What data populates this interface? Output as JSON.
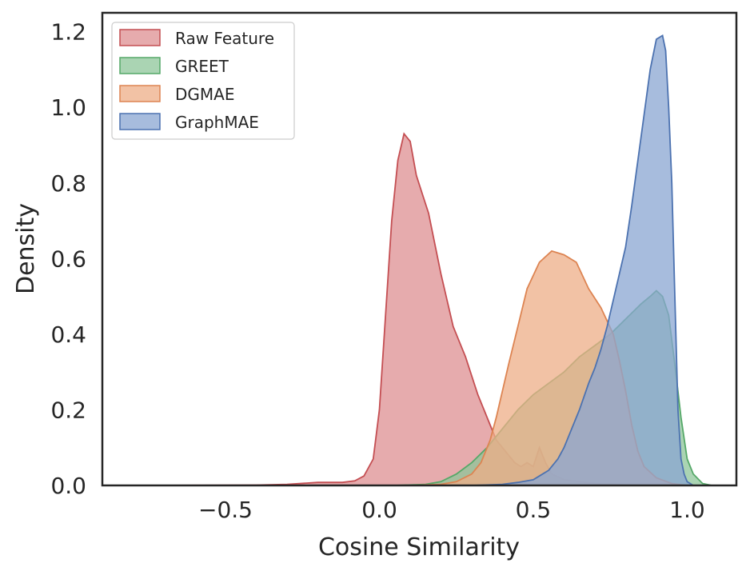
{
  "chart_data": {
    "type": "area",
    "title": "",
    "xlabel": "Cosine Similarity",
    "ylabel": "Density",
    "xlim": [
      -0.9,
      1.16
    ],
    "ylim": [
      0,
      1.25
    ],
    "xticks": [
      -0.5,
      0.0,
      0.5,
      1.0
    ],
    "xtick_labels": [
      "−0.5",
      "0.0",
      "0.5",
      "1.0"
    ],
    "yticks": [
      0.0,
      0.2,
      0.4,
      0.6,
      0.8,
      1.0,
      1.2
    ],
    "ytick_labels": [
      "0.0",
      "0.2",
      "0.4",
      "0.6",
      "0.8",
      "1.0",
      "1.2"
    ],
    "grid": false,
    "legend_position": "top-left",
    "series": [
      {
        "name": "Raw Feature",
        "color": "#c44e52",
        "fill": "#dd8f92",
        "points": [
          [
            -0.8,
            0.0
          ],
          [
            -0.4,
            0.001
          ],
          [
            -0.3,
            0.003
          ],
          [
            -0.2,
            0.008
          ],
          [
            -0.12,
            0.008
          ],
          [
            -0.08,
            0.012
          ],
          [
            -0.05,
            0.025
          ],
          [
            -0.02,
            0.07
          ],
          [
            0.0,
            0.2
          ],
          [
            0.02,
            0.45
          ],
          [
            0.04,
            0.7
          ],
          [
            0.06,
            0.86
          ],
          [
            0.08,
            0.93
          ],
          [
            0.1,
            0.91
          ],
          [
            0.12,
            0.82
          ],
          [
            0.14,
            0.77
          ],
          [
            0.16,
            0.72
          ],
          [
            0.18,
            0.64
          ],
          [
            0.2,
            0.56
          ],
          [
            0.22,
            0.49
          ],
          [
            0.24,
            0.42
          ],
          [
            0.26,
            0.38
          ],
          [
            0.28,
            0.34
          ],
          [
            0.3,
            0.29
          ],
          [
            0.32,
            0.24
          ],
          [
            0.34,
            0.2
          ],
          [
            0.36,
            0.16
          ],
          [
            0.38,
            0.12
          ],
          [
            0.4,
            0.1
          ],
          [
            0.42,
            0.08
          ],
          [
            0.44,
            0.06
          ],
          [
            0.46,
            0.05
          ],
          [
            0.48,
            0.06
          ],
          [
            0.5,
            0.05
          ],
          [
            0.52,
            0.1
          ],
          [
            0.54,
            0.06
          ],
          [
            0.56,
            0.03
          ],
          [
            0.6,
            0.015
          ],
          [
            0.65,
            0.01
          ],
          [
            0.7,
            0.005
          ],
          [
            0.8,
            0.002
          ],
          [
            1.0,
            0.0
          ]
        ]
      },
      {
        "name": "GREET",
        "color": "#55a868",
        "fill": "#8ec69a",
        "points": [
          [
            0.05,
            0.0
          ],
          [
            0.15,
            0.003
          ],
          [
            0.2,
            0.01
          ],
          [
            0.25,
            0.03
          ],
          [
            0.3,
            0.06
          ],
          [
            0.35,
            0.1
          ],
          [
            0.4,
            0.15
          ],
          [
            0.45,
            0.2
          ],
          [
            0.5,
            0.24
          ],
          [
            0.55,
            0.27
          ],
          [
            0.6,
            0.3
          ],
          [
            0.65,
            0.34
          ],
          [
            0.7,
            0.37
          ],
          [
            0.75,
            0.4
          ],
          [
            0.8,
            0.44
          ],
          [
            0.85,
            0.48
          ],
          [
            0.88,
            0.5
          ],
          [
            0.9,
            0.515
          ],
          [
            0.92,
            0.5
          ],
          [
            0.94,
            0.45
          ],
          [
            0.96,
            0.32
          ],
          [
            0.98,
            0.18
          ],
          [
            1.0,
            0.07
          ],
          [
            1.02,
            0.03
          ],
          [
            1.05,
            0.005
          ],
          [
            1.08,
            0.0
          ]
        ]
      },
      {
        "name": "DGMAE",
        "color": "#dd8452",
        "fill": "#eeae87",
        "points": [
          [
            0.1,
            0.0
          ],
          [
            0.2,
            0.003
          ],
          [
            0.25,
            0.01
          ],
          [
            0.3,
            0.03
          ],
          [
            0.33,
            0.06
          ],
          [
            0.36,
            0.12
          ],
          [
            0.38,
            0.18
          ],
          [
            0.4,
            0.25
          ],
          [
            0.42,
            0.32
          ],
          [
            0.45,
            0.42
          ],
          [
            0.48,
            0.52
          ],
          [
            0.52,
            0.59
          ],
          [
            0.56,
            0.62
          ],
          [
            0.6,
            0.61
          ],
          [
            0.64,
            0.59
          ],
          [
            0.68,
            0.52
          ],
          [
            0.72,
            0.47
          ],
          [
            0.76,
            0.4
          ],
          [
            0.78,
            0.33
          ],
          [
            0.8,
            0.25
          ],
          [
            0.82,
            0.16
          ],
          [
            0.84,
            0.09
          ],
          [
            0.86,
            0.05
          ],
          [
            0.9,
            0.02
          ],
          [
            0.95,
            0.005
          ],
          [
            1.0,
            0.0
          ]
        ]
      },
      {
        "name": "GraphMAE",
        "color": "#4c72b0",
        "fill": "#8aa6d1",
        "points": [
          [
            0.3,
            0.0
          ],
          [
            0.4,
            0.003
          ],
          [
            0.45,
            0.008
          ],
          [
            0.5,
            0.015
          ],
          [
            0.52,
            0.025
          ],
          [
            0.55,
            0.04
          ],
          [
            0.58,
            0.07
          ],
          [
            0.6,
            0.1
          ],
          [
            0.62,
            0.14
          ],
          [
            0.65,
            0.2
          ],
          [
            0.68,
            0.27
          ],
          [
            0.7,
            0.31
          ],
          [
            0.72,
            0.36
          ],
          [
            0.74,
            0.42
          ],
          [
            0.76,
            0.49
          ],
          [
            0.78,
            0.56
          ],
          [
            0.8,
            0.63
          ],
          [
            0.82,
            0.74
          ],
          [
            0.84,
            0.86
          ],
          [
            0.86,
            0.98
          ],
          [
            0.88,
            1.1
          ],
          [
            0.9,
            1.18
          ],
          [
            0.92,
            1.19
          ],
          [
            0.93,
            1.15
          ],
          [
            0.94,
            1.0
          ],
          [
            0.95,
            0.8
          ],
          [
            0.96,
            0.5
          ],
          [
            0.97,
            0.2
          ],
          [
            0.98,
            0.07
          ],
          [
            0.99,
            0.03
          ],
          [
            1.0,
            0.01
          ],
          [
            1.02,
            0.0
          ]
        ]
      }
    ]
  }
}
